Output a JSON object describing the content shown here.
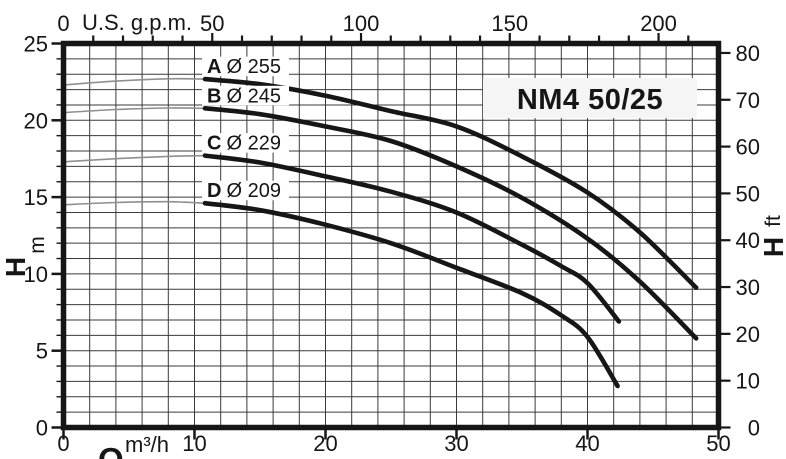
{
  "colors": {
    "ink": "#161616",
    "grid": "#3a3a3a",
    "thin_curve": "#8f8f8f",
    "title_bg": "#f5f5f5",
    "label_bg": "#ffffff"
  },
  "chart_data": {
    "type": "line",
    "title": "NM4 50/25",
    "grid": "on",
    "x_axis_bottom": {
      "label_symbol": "Q",
      "unit": "m³/h",
      "range": [
        0,
        50
      ],
      "ticks": [
        0,
        10,
        20,
        30,
        40,
        50
      ],
      "minor_step": 2
    },
    "x_axis_top": {
      "unit_label": "U.S. g.p.m.",
      "tick_labels": [
        0,
        50,
        100,
        150,
        200
      ],
      "minor_tick_step_gpm": 10,
      "max_minor_tick_gpm": 210,
      "gpm_per_m3h": 4.4029
    },
    "y_axis_left": {
      "label_symbol": "H",
      "unit": "m",
      "range": [
        0,
        25
      ],
      "ticks": [
        0,
        5,
        10,
        15,
        20,
        25
      ],
      "minor_step": 1
    },
    "y_axis_right": {
      "label_symbol": "H",
      "unit": "ft",
      "ticks": [
        0,
        10,
        20,
        30,
        40,
        50,
        60,
        70,
        80
      ],
      "ft_per_m": 3.2808
    },
    "series": [
      {
        "id": "A",
        "label": {
          "letter": "A",
          "size": "Ø 255"
        },
        "thin_points": [
          [
            0,
            22.3
          ],
          [
            4,
            22.55
          ],
          [
            8,
            22.7
          ],
          [
            10.8,
            22.68
          ]
        ],
        "points": [
          [
            10.8,
            22.68
          ],
          [
            15,
            22.35
          ],
          [
            20,
            21.6
          ],
          [
            25,
            20.6
          ],
          [
            30,
            19.6
          ],
          [
            35,
            17.65
          ],
          [
            40,
            15.3
          ],
          [
            44,
            12.7
          ],
          [
            48.3,
            9.1
          ]
        ]
      },
      {
        "id": "B",
        "label": {
          "letter": "B",
          "size": "Ø 245"
        },
        "thin_points": [
          [
            0,
            20.5
          ],
          [
            4,
            20.7
          ],
          [
            8,
            20.8
          ],
          [
            10.8,
            20.78
          ]
        ],
        "points": [
          [
            10.8,
            20.78
          ],
          [
            15,
            20.4
          ],
          [
            20,
            19.6
          ],
          [
            25,
            18.65
          ],
          [
            30,
            17.0
          ],
          [
            35,
            14.95
          ],
          [
            40,
            12.3
          ],
          [
            44,
            9.5
          ],
          [
            48.3,
            5.8
          ]
        ]
      },
      {
        "id": "C",
        "label": {
          "letter": "C",
          "size": "Ø 229"
        },
        "thin_points": [
          [
            0,
            17.3
          ],
          [
            4,
            17.5
          ],
          [
            8,
            17.65
          ],
          [
            10.8,
            17.7
          ]
        ],
        "points": [
          [
            10.8,
            17.7
          ],
          [
            15,
            17.25
          ],
          [
            20,
            16.35
          ],
          [
            25,
            15.35
          ],
          [
            30,
            14.0
          ],
          [
            35,
            11.9
          ],
          [
            38,
            10.5
          ],
          [
            40,
            9.4
          ],
          [
            42.4,
            6.9
          ]
        ]
      },
      {
        "id": "D",
        "label": {
          "letter": "D",
          "size": "Ø 209"
        },
        "thin_points": [
          [
            0,
            14.5
          ],
          [
            4,
            14.65
          ],
          [
            8,
            14.7
          ],
          [
            10.8,
            14.6
          ]
        ],
        "points": [
          [
            10.8,
            14.6
          ],
          [
            15,
            14.15
          ],
          [
            20,
            13.2
          ],
          [
            25,
            12.0
          ],
          [
            30,
            10.4
          ],
          [
            35,
            8.75
          ],
          [
            38,
            7.3
          ],
          [
            40,
            5.9
          ],
          [
            42.3,
            2.7
          ]
        ]
      }
    ]
  }
}
